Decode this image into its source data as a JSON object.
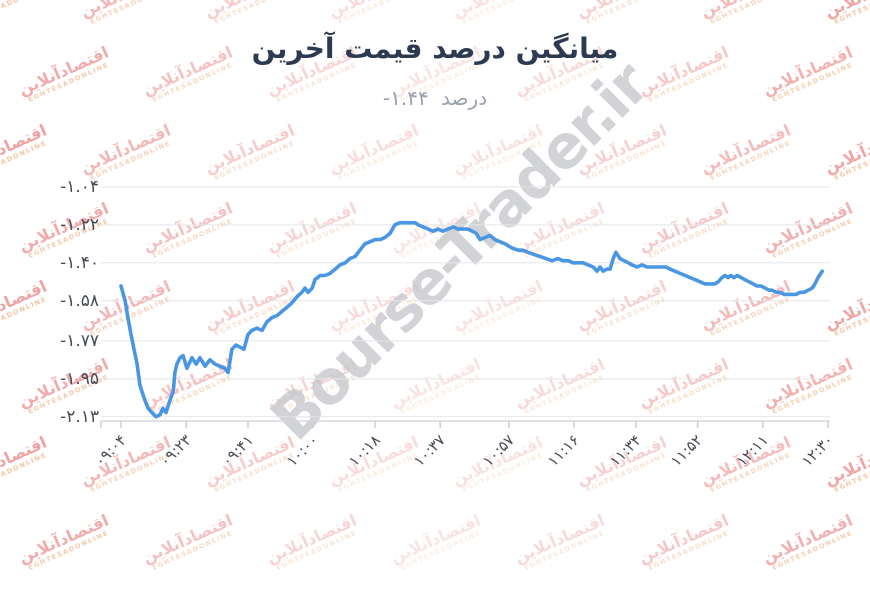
{
  "page": {
    "title": "میانگین درصد قیمت آخرین",
    "subtitle_label": "درصد",
    "subtitle_value": "-۱.۴۴"
  },
  "watermarks": {
    "center_text": "Bourse-Trader.ir",
    "center_color": "#c7c9cc",
    "tile_text_fa": "اقتصادآنلاین",
    "tile_text_en": "EGHTESADONLINE",
    "tile_color": "#e03e3e"
  },
  "chart_data": {
    "type": "line",
    "title": "میانگین درصد قیمت آخرین",
    "subtitle": "درصد -۱.۴۴",
    "last_value_percent": -1.44,
    "xlabel": "",
    "ylabel": "",
    "grid": true,
    "legend": "none",
    "line_color": "#4a96e3",
    "grid_color": "#e4e5e7",
    "axis_line_color": "#d6d8da",
    "tick_color": "#cbcdd0",
    "label_color": "#474c54",
    "start_time": "09:04",
    "end_time": "12:30",
    "x_minutes_range": [
      0,
      206
    ],
    "ylim": [
      -2.15,
      -0.96
    ],
    "x_ticks": [
      {
        "label": "۰۹:۰۴",
        "minute": 0
      },
      {
        "label": "۰۹:۲۳",
        "minute": 19
      },
      {
        "label": "۰۹:۴۱",
        "minute": 37
      },
      {
        "label": "۱۰:۰۰",
        "minute": 56
      },
      {
        "label": "۱۰:۱۸",
        "minute": 74
      },
      {
        "label": "۱۰:۳۷",
        "minute": 93
      },
      {
        "label": "۱۰:۵۷",
        "minute": 113
      },
      {
        "label": "۱۱:۱۶",
        "minute": 132
      },
      {
        "label": "۱۱:۳۴",
        "minute": 150
      },
      {
        "label": "۱۱:۵۲",
        "minute": 168
      },
      {
        "label": "۱۲:۱۱",
        "minute": 187
      },
      {
        "label": "۱۲:۳۰",
        "minute": 206
      }
    ],
    "y_ticks": [
      {
        "label": "-۱.۰۴",
        "value": -1.04
      },
      {
        "label": "-۱.۲۲",
        "value": -1.22
      },
      {
        "label": "-۱.۴۰",
        "value": -1.4
      },
      {
        "label": "-۱.۵۸",
        "value": -1.58
      },
      {
        "label": "-۱.۷۷",
        "value": -1.77
      },
      {
        "label": "-۱.۹۵",
        "value": -1.95
      },
      {
        "label": "-۲.۱۳",
        "value": -2.13
      }
    ],
    "points": [
      [
        0,
        -1.51
      ],
      [
        1.2,
        -1.58
      ],
      [
        2,
        -1.66
      ],
      [
        2.9,
        -1.74
      ],
      [
        3.8,
        -1.81
      ],
      [
        4.7,
        -1.88
      ],
      [
        5.5,
        -1.98
      ],
      [
        6.7,
        -2.04
      ],
      [
        7.9,
        -2.09
      ],
      [
        9,
        -2.11
      ],
      [
        10.2,
        -2.13
      ],
      [
        11.4,
        -2.12
      ],
      [
        12.2,
        -2.09
      ],
      [
        13.1,
        -2.11
      ],
      [
        14.3,
        -2.05
      ],
      [
        15.2,
        -2.01
      ],
      [
        15.7,
        -1.92
      ],
      [
        16.3,
        -1.88
      ],
      [
        17.2,
        -1.85
      ],
      [
        18.1,
        -1.84
      ],
      [
        19.2,
        -1.9
      ],
      [
        20.7,
        -1.85
      ],
      [
        21.9,
        -1.88
      ],
      [
        23,
        -1.85
      ],
      [
        24.5,
        -1.89
      ],
      [
        25.9,
        -1.86
      ],
      [
        27.4,
        -1.88
      ],
      [
        28.8,
        -1.89
      ],
      [
        30.3,
        -1.9
      ],
      [
        31.2,
        -1.92
      ],
      [
        32.3,
        -1.81
      ],
      [
        33.5,
        -1.79
      ],
      [
        34.7,
        -1.8
      ],
      [
        35.8,
        -1.81
      ],
      [
        37,
        -1.74
      ],
      [
        38.2,
        -1.72
      ],
      [
        39.6,
        -1.71
      ],
      [
        41.1,
        -1.72
      ],
      [
        42.5,
        -1.68
      ],
      [
        44,
        -1.66
      ],
      [
        45.5,
        -1.65
      ],
      [
        46.9,
        -1.63
      ],
      [
        48.4,
        -1.61
      ],
      [
        49.8,
        -1.59
      ],
      [
        51.3,
        -1.56
      ],
      [
        52.7,
        -1.54
      ],
      [
        53.6,
        -1.52
      ],
      [
        54.5,
        -1.54
      ],
      [
        55.7,
        -1.52
      ],
      [
        56.5,
        -1.48
      ],
      [
        58,
        -1.46
      ],
      [
        59.4,
        -1.46
      ],
      [
        60.9,
        -1.45
      ],
      [
        62.4,
        -1.43
      ],
      [
        63.8,
        -1.41
      ],
      [
        65.3,
        -1.4
      ],
      [
        66.7,
        -1.38
      ],
      [
        68.2,
        -1.37
      ],
      [
        69.6,
        -1.34
      ],
      [
        71.1,
        -1.31
      ],
      [
        72.6,
        -1.3
      ],
      [
        74,
        -1.29
      ],
      [
        75.5,
        -1.29
      ],
      [
        76.9,
        -1.28
      ],
      [
        78.4,
        -1.26
      ],
      [
        79.8,
        -1.22
      ],
      [
        81.3,
        -1.21
      ],
      [
        82.8,
        -1.21
      ],
      [
        84.2,
        -1.21
      ],
      [
        85.7,
        -1.21
      ],
      [
        86.6,
        -1.22
      ],
      [
        88,
        -1.23
      ],
      [
        89.5,
        -1.24
      ],
      [
        90.9,
        -1.25
      ],
      [
        92.4,
        -1.24
      ],
      [
        93.8,
        -1.25
      ],
      [
        95.3,
        -1.24
      ],
      [
        96.8,
        -1.23
      ],
      [
        98.2,
        -1.24
      ],
      [
        99.7,
        -1.24
      ],
      [
        101.1,
        -1.24
      ],
      [
        102.3,
        -1.25
      ],
      [
        103.5,
        -1.26
      ],
      [
        104.6,
        -1.29
      ],
      [
        106.1,
        -1.28
      ],
      [
        107.5,
        -1.27
      ],
      [
        109,
        -1.29
      ],
      [
        110.4,
        -1.3
      ],
      [
        111.9,
        -1.31
      ],
      [
        113.9,
        -1.33
      ],
      [
        115.7,
        -1.34
      ],
      [
        117.1,
        -1.34
      ],
      [
        118.6,
        -1.35
      ],
      [
        120.3,
        -1.36
      ],
      [
        122.1,
        -1.37
      ],
      [
        123.8,
        -1.38
      ],
      [
        125.6,
        -1.39
      ],
      [
        127.3,
        -1.38
      ],
      [
        128.8,
        -1.39
      ],
      [
        130.3,
        -1.39
      ],
      [
        131.7,
        -1.4
      ],
      [
        133.2,
        -1.4
      ],
      [
        134.6,
        -1.4
      ],
      [
        136.1,
        -1.41
      ],
      [
        137.6,
        -1.42
      ],
      [
        138.7,
        -1.44
      ],
      [
        139.6,
        -1.42
      ],
      [
        140.5,
        -1.44
      ],
      [
        141.6,
        -1.43
      ],
      [
        142.5,
        -1.43
      ],
      [
        143.4,
        -1.38
      ],
      [
        144.2,
        -1.35
      ],
      [
        145.4,
        -1.38
      ],
      [
        146.6,
        -1.39
      ],
      [
        147.8,
        -1.4
      ],
      [
        148.9,
        -1.41
      ],
      [
        150.4,
        -1.42
      ],
      [
        151.8,
        -1.41
      ],
      [
        153.3,
        -1.42
      ],
      [
        154.7,
        -1.42
      ],
      [
        156.2,
        -1.42
      ],
      [
        157.6,
        -1.42
      ],
      [
        158.8,
        -1.42
      ],
      [
        160,
        -1.43
      ],
      [
        161.4,
        -1.44
      ],
      [
        162.9,
        -1.45
      ],
      [
        164.4,
        -1.46
      ],
      [
        165.8,
        -1.47
      ],
      [
        167.3,
        -1.48
      ],
      [
        168.7,
        -1.49
      ],
      [
        170.2,
        -1.5
      ],
      [
        171.6,
        -1.5
      ],
      [
        173.1,
        -1.5
      ],
      [
        174,
        -1.49
      ],
      [
        175.1,
        -1.47
      ],
      [
        176,
        -1.46
      ],
      [
        176.9,
        -1.47
      ],
      [
        177.7,
        -1.46
      ],
      [
        178.6,
        -1.47
      ],
      [
        179.5,
        -1.46
      ],
      [
        180.7,
        -1.47
      ],
      [
        181.8,
        -1.48
      ],
      [
        183,
        -1.49
      ],
      [
        184.2,
        -1.5
      ],
      [
        185.3,
        -1.51
      ],
      [
        186.5,
        -1.51
      ],
      [
        187.7,
        -1.52
      ],
      [
        188.8,
        -1.53
      ],
      [
        189.7,
        -1.53
      ],
      [
        190.9,
        -1.54
      ],
      [
        192,
        -1.54
      ],
      [
        193.2,
        -1.55
      ],
      [
        194.4,
        -1.55
      ],
      [
        195.6,
        -1.55
      ],
      [
        196.7,
        -1.55
      ],
      [
        197.9,
        -1.54
      ],
      [
        199,
        -1.54
      ],
      [
        200.2,
        -1.53
      ],
      [
        201.4,
        -1.52
      ],
      [
        202.2,
        -1.5
      ],
      [
        203.1,
        -1.47
      ],
      [
        204.3,
        -1.44
      ]
    ]
  }
}
